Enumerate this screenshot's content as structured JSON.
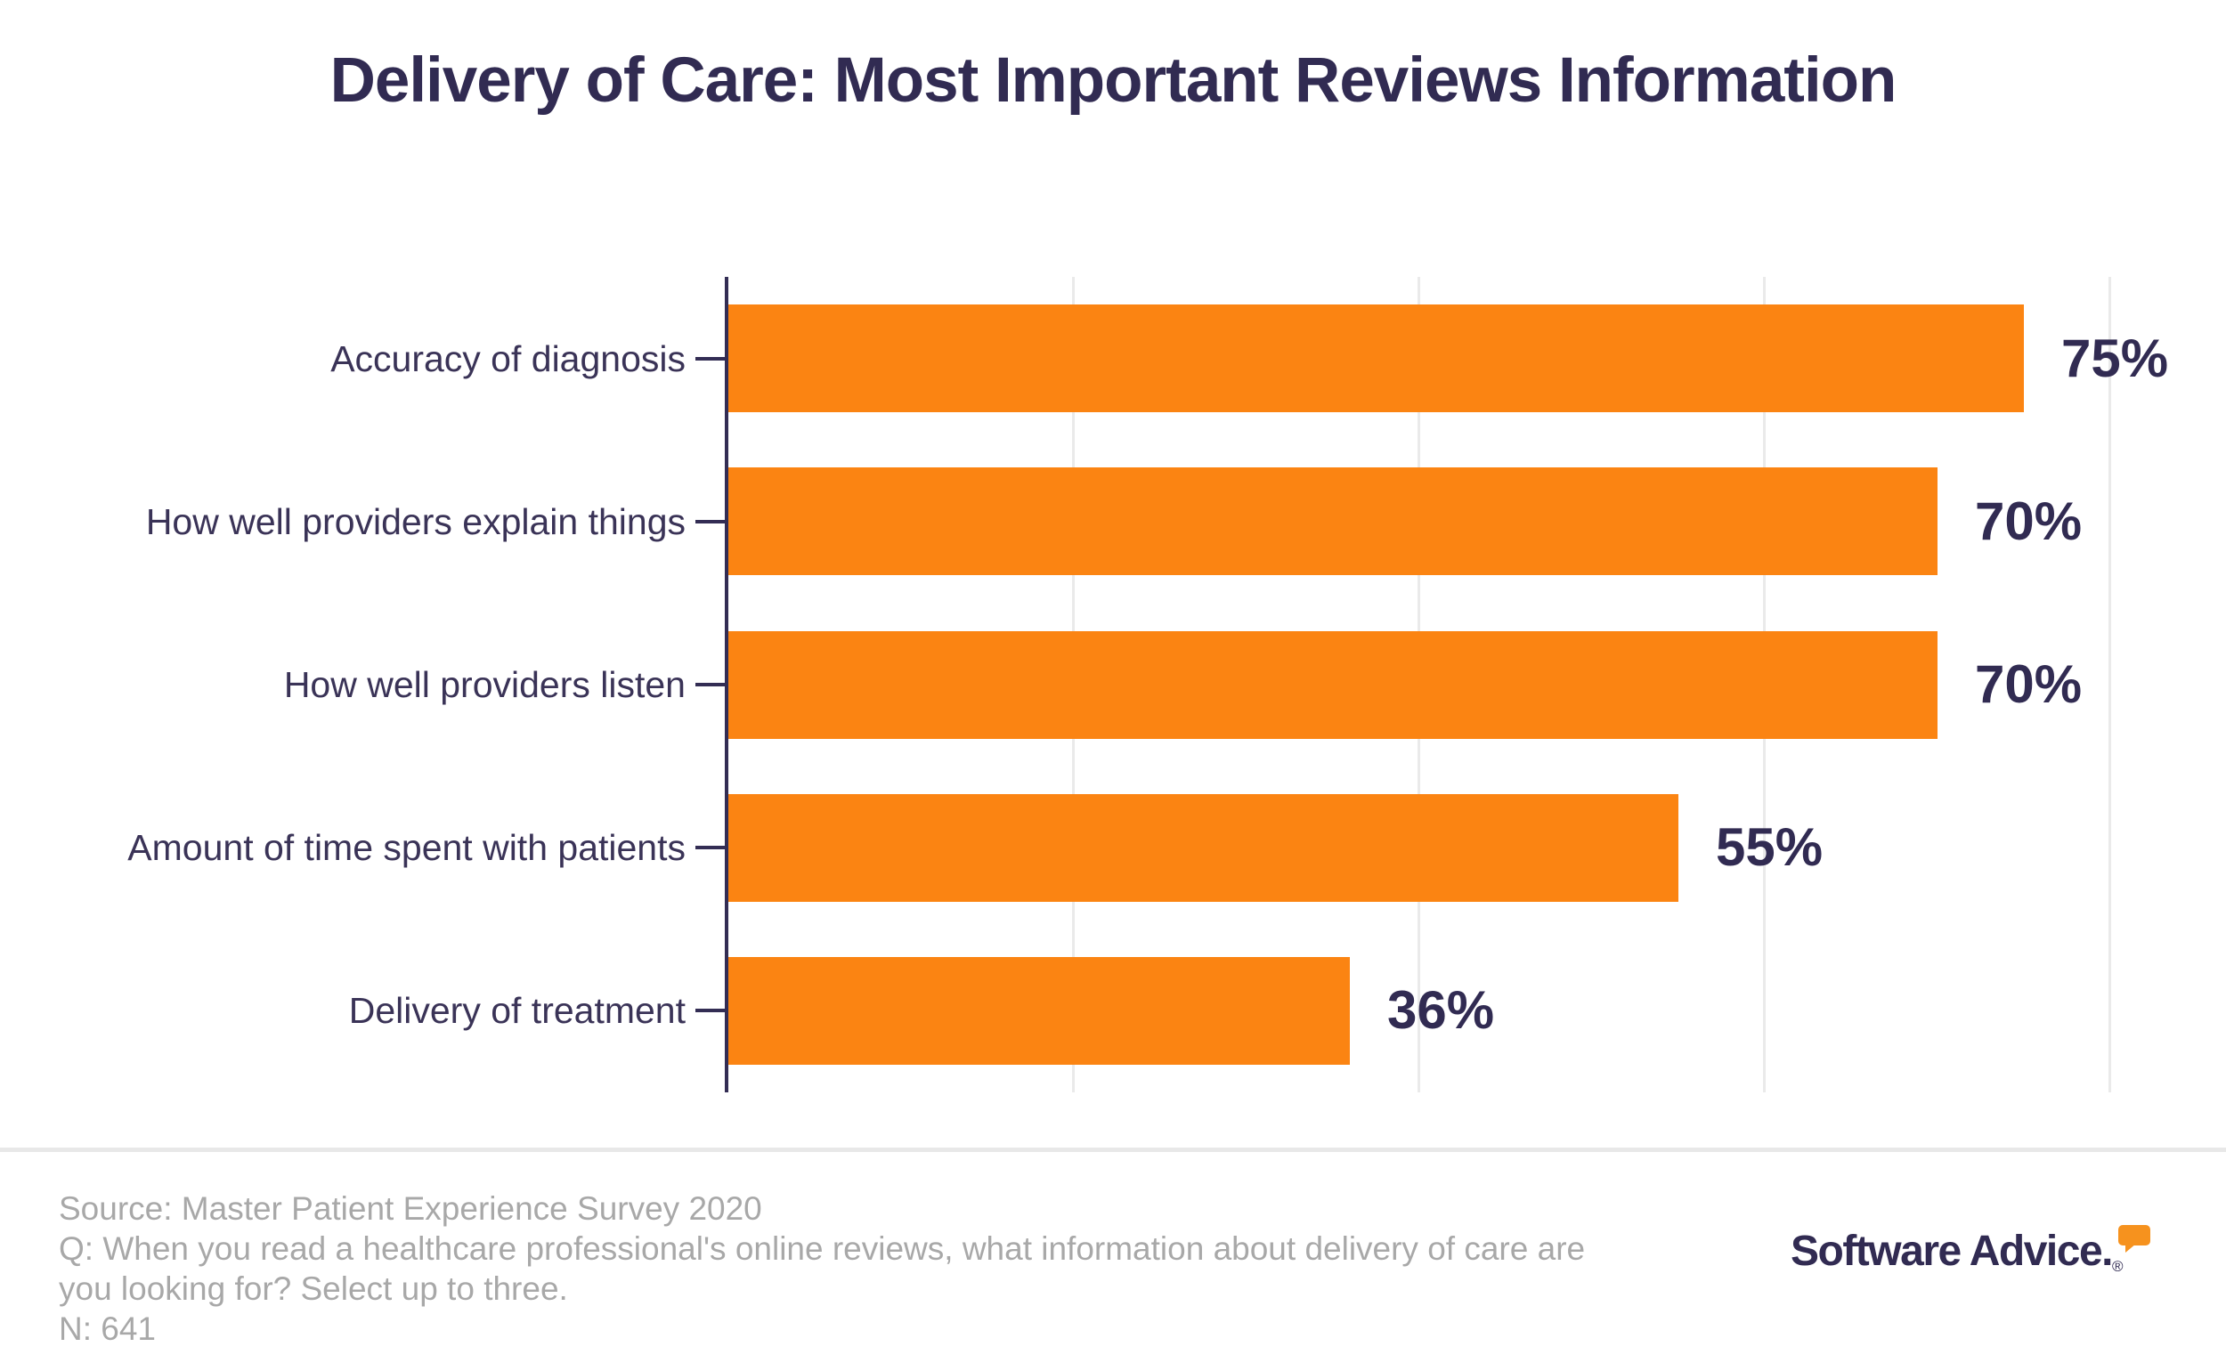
{
  "title": "Delivery of Care: Most Important Reviews Information",
  "chart_data": {
    "type": "bar",
    "orientation": "horizontal",
    "title": "Delivery of Care: Most Important Reviews Information",
    "categories": [
      "Accuracy of diagnosis",
      "How well providers explain things",
      "How well providers listen",
      "Amount of time spent with patients",
      "Delivery of treatment"
    ],
    "values": [
      75,
      70,
      70,
      55,
      36
    ],
    "value_labels": [
      "75%",
      "70%",
      "70%",
      "55%",
      "36%"
    ],
    "xlabel": "",
    "ylabel": "",
    "xlim": [
      0,
      100
    ],
    "gridline_values": [
      20,
      40,
      60,
      80
    ],
    "grid": "vertical",
    "legend_position": "none",
    "bar_color": "#FB8412",
    "axis_color": "#332D54",
    "gridline_color": "#EAEAEA",
    "category_label_color": "#3A3357",
    "value_label_color": "#312B52"
  },
  "footer": {
    "lines": [
      "Source: Master Patient Experience Survey 2020",
      "Q: When you read a healthcare professional's online reviews, what information about delivery of care are",
      "you looking for? Select up to three.",
      "N: 641"
    ],
    "logo_text": "Software Advice.",
    "logo_registered": "®"
  },
  "colors": {
    "background": "#FFFFFF",
    "title": "#312B52",
    "divider": "#E8E8E8",
    "footer_text": "#A8A8A8",
    "logo_navy": "#312B52",
    "logo_bubble_orange": "#F6921E"
  }
}
